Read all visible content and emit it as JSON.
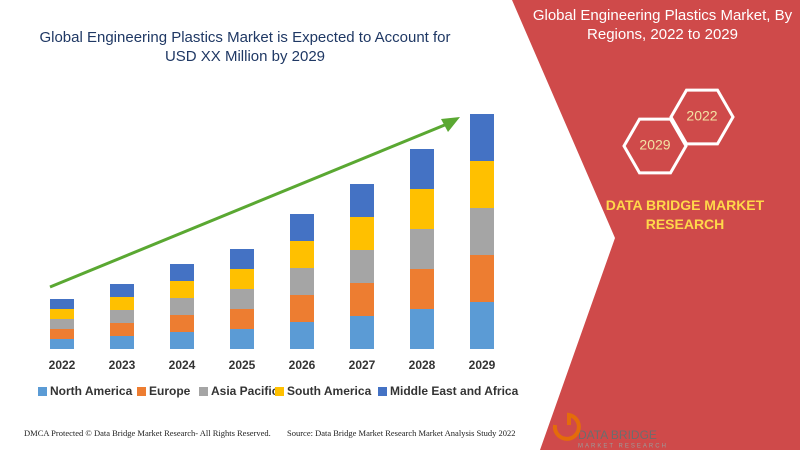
{
  "chart_data": {
    "type": "bar",
    "stacked": true,
    "title": "Global Engineering Plastics Market is Expected to Account for USD XX Million by 2029",
    "categories": [
      "2022",
      "2023",
      "2024",
      "2025",
      "2026",
      "2027",
      "2028",
      "2029"
    ],
    "series": [
      {
        "name": "North America",
        "color": "#5b9bd5",
        "values": [
          10,
          13,
          17,
          20,
          27,
          33,
          40,
          47
        ]
      },
      {
        "name": "Europe",
        "color": "#ed7d31",
        "values": [
          10,
          13,
          17,
          20,
          27,
          33,
          40,
          47
        ]
      },
      {
        "name": "Asia Pacific",
        "color": "#a5a5a5",
        "values": [
          10,
          13,
          17,
          20,
          27,
          33,
          40,
          47
        ]
      },
      {
        "name": "South America",
        "color": "#ffc000",
        "values": [
          10,
          13,
          17,
          20,
          27,
          33,
          40,
          47
        ]
      },
      {
        "name": "Middle East and Africa",
        "color": "#4472c4",
        "values": [
          10,
          13,
          17,
          20,
          27,
          33,
          40,
          47
        ]
      }
    ],
    "legend": "bottom"
  },
  "panel": {
    "title": "Global Engineering Plastics Market, By Regions, 2022 to 2029",
    "hexagons": [
      "2022",
      "2029"
    ],
    "brand": "DATA BRIDGE MARKET RESEARCH"
  },
  "logo": {
    "name": "DATA BRIDGE",
    "tagline": "MARKET RESEARCH"
  },
  "footer": {
    "left": "DMCA Protected © Data Bridge Market Research- All Rights Reserved.",
    "right": "Source: Data Bridge Market Research Market Analysis Study 2022"
  }
}
